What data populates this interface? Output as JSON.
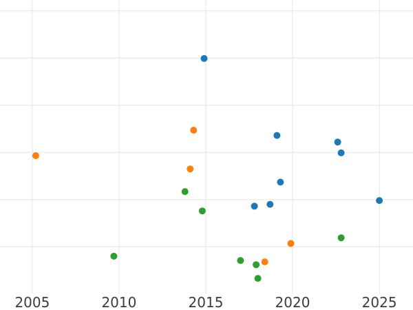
{
  "figure": {
    "background": "#ffffff",
    "grid_color": "#e6e6e6",
    "tick_label_color": "#3c3c3c",
    "tick_label_font_size_px": 20
  },
  "chart_data": {
    "type": "scatter",
    "title": "",
    "subtitle": "",
    "xlabel": "",
    "ylabel": "",
    "legend": "none",
    "grid": true,
    "marker_diameter_px": 10,
    "x_tick_values": [
      2005,
      2010,
      2015,
      2020,
      2025
    ],
    "x_tick_labels": [
      "2005",
      "2010",
      "2015",
      "2020",
      "2025"
    ],
    "xlim": [
      2003.14,
      2026.94
    ],
    "ylim": [
      -0.34,
      6.23
    ],
    "y_axis": {
      "tick_labels_visible": false,
      "gridline_units": [
        1,
        2,
        3,
        4,
        5,
        6
      ],
      "note": "No y-axis tick labels are visible; y values are expressed in gridline units above the plot bottom (one unit per horizontal gridline spacing)."
    },
    "series": [
      {
        "name": "series-blue",
        "color": "#1f77b4",
        "points": [
          [
            2014.9,
            4.99
          ],
          [
            2019.1,
            3.36
          ],
          [
            2022.6,
            3.22
          ],
          [
            2022.8,
            2.99
          ],
          [
            2019.3,
            2.37
          ],
          [
            2017.8,
            1.86
          ],
          [
            2018.7,
            1.9
          ],
          [
            2025.0,
            1.98
          ]
        ]
      },
      {
        "name": "series-orange",
        "color": "#ff7f0e",
        "points": [
          [
            2005.2,
            2.93
          ],
          [
            2014.3,
            3.47
          ],
          [
            2014.1,
            2.65
          ],
          [
            2019.9,
            1.07
          ],
          [
            2018.4,
            0.68
          ]
        ]
      },
      {
        "name": "series-green",
        "color": "#2ca02c",
        "points": [
          [
            2013.8,
            2.17
          ],
          [
            2014.8,
            1.76
          ],
          [
            2009.7,
            0.8
          ],
          [
            2022.8,
            1.19
          ],
          [
            2017.0,
            0.71
          ],
          [
            2017.9,
            0.62
          ],
          [
            2018.0,
            0.33
          ]
        ]
      }
    ]
  }
}
